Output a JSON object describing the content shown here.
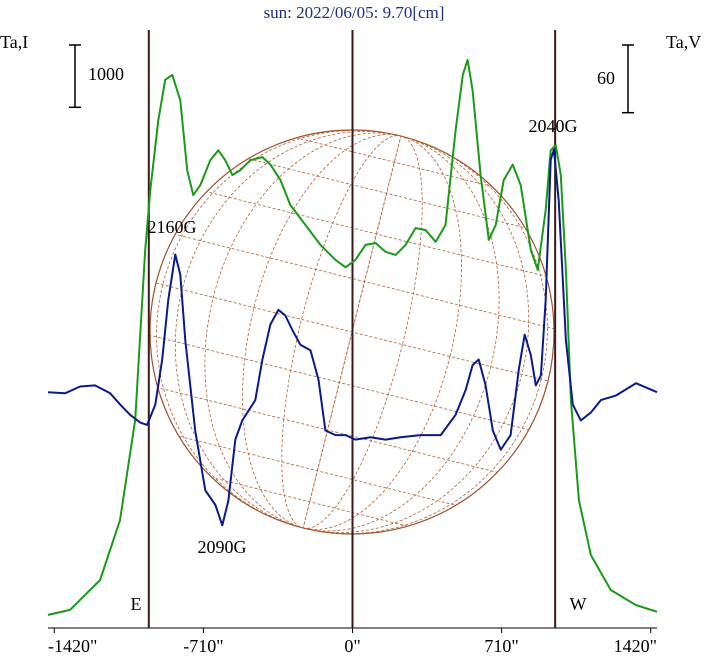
{
  "chart_data": {
    "type": "line",
    "title": "sun: 2022/06/05: 9.70[cm]",
    "ylabel": "Ta,I",
    "y2label": "Ta,V",
    "scale_bar": 1000,
    "y2_scale_bar": 60,
    "xlim": [
      -1450,
      1450
    ],
    "xticks": [
      {
        "value": -1420,
        "label": "-1420\""
      },
      {
        "value": -710,
        "label": "-710\""
      },
      {
        "value": 0,
        "label": "0\""
      },
      {
        "value": 710,
        "label": "710\""
      },
      {
        "value": 1420,
        "label": "1420\""
      }
    ],
    "ylim": [
      0,
      9600
    ],
    "y2lim": [
      -280,
      250
    ],
    "vlines": [
      -970,
      0,
      965
    ],
    "limb_labels": [
      "E",
      "W"
    ],
    "annotations": [
      "2160G",
      "2090G",
      "2040G"
    ],
    "series": [
      {
        "name": "I",
        "color": "#1a9a1a",
        "x": [
          -1450,
          -1345,
          -1202,
          -1107,
          -1035,
          -987,
          -963,
          -925,
          -892,
          -858,
          -820,
          -787,
          -758,
          -725,
          -677,
          -639,
          -606,
          -572,
          -534,
          -486,
          -429,
          -391,
          -343,
          -296,
          -224,
          -153,
          -81,
          -33,
          14,
          62,
          110,
          157,
          205,
          253,
          300,
          348,
          396,
          443,
          491,
          525,
          548,
          572,
          610,
          649,
          682,
          720,
          763,
          801,
          849,
          882,
          920,
          944,
          968,
          992,
          1016,
          1040,
          1078,
          1135,
          1230,
          1349,
          1450
        ],
        "values": [
          210,
          290,
          770,
          1730,
          3340,
          6070,
          7030,
          8150,
          8800,
          8880,
          8470,
          7350,
          6950,
          7110,
          7510,
          7670,
          7510,
          7270,
          7350,
          7510,
          7560,
          7440,
          7190,
          6790,
          6470,
          6150,
          5910,
          5790,
          5910,
          6150,
          6180,
          6040,
          5990,
          6150,
          6420,
          6390,
          6200,
          6470,
          7990,
          8880,
          9120,
          8630,
          7270,
          6230,
          6470,
          7190,
          7440,
          7110,
          6070,
          5750,
          6710,
          7670,
          7750,
          7270,
          5750,
          3660,
          2050,
          1170,
          610,
          370,
          260
        ]
      },
      {
        "name": "V",
        "color": "#0a1a8a",
        "axis": "y2",
        "x": [
          -1450,
          -1369,
          -1297,
          -1226,
          -1154,
          -1106,
          -1059,
          -1011,
          -978,
          -939,
          -906,
          -877,
          -844,
          -820,
          -796,
          -749,
          -701,
          -653,
          -620,
          -591,
          -558,
          -525,
          -463,
          -429,
          -391,
          -353,
          -320,
          -286,
          -248,
          -200,
          -162,
          -129,
          -81,
          -33,
          14,
          86,
          157,
          229,
          324,
          420,
          491,
          539,
          572,
          601,
          634,
          668,
          706,
          753,
          792,
          820,
          849,
          873,
          897,
          920,
          944,
          959,
          982,
          1016,
          1049,
          1087,
          1135,
          1183,
          1254,
          1350,
          1450
        ],
        "values": [
          -71,
          -72,
          -66,
          -65,
          -72,
          -82,
          -91,
          -98,
          -100,
          -82,
          -42,
          11,
          51,
          33,
          -25,
          -105,
          -158,
          -171,
          -189,
          -167,
          -113,
          -96,
          -78,
          -42,
          -11,
          2,
          -3,
          -16,
          -29,
          -34,
          -60,
          -105,
          -109,
          -109,
          -113,
          -111,
          -113,
          -111,
          -109,
          -109,
          -91,
          -69,
          -47,
          -42,
          -65,
          -105,
          -122,
          -109,
          -51,
          -20,
          -38,
          -65,
          -56,
          11,
          135,
          144,
          99,
          -25,
          -82,
          -96,
          -89,
          -78,
          -74,
          -63,
          -71
        ]
      }
    ]
  }
}
